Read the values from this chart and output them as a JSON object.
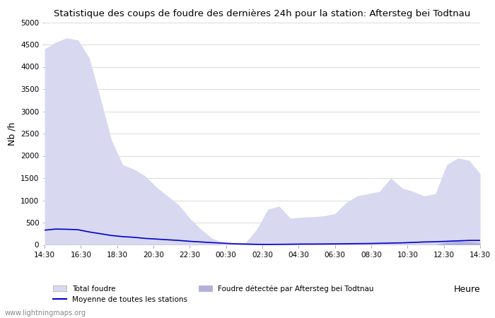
{
  "title": "Statistique des coups de foudre des dernières 24h pour la station: Aftersteg bei Todtnau",
  "xlabel": "Heure",
  "ylabel": "Nb /h",
  "ylim": [
    0,
    5000
  ],
  "yticks": [
    0,
    500,
    1000,
    1500,
    2000,
    2500,
    3000,
    3500,
    4000,
    4500,
    5000
  ],
  "xtick_labels": [
    "14:30",
    "16:30",
    "18:30",
    "20:30",
    "22:30",
    "00:30",
    "02:30",
    "04:30",
    "06:30",
    "08:30",
    "10:30",
    "12:30",
    "14:30"
  ],
  "color_total": "#d8d8f0",
  "color_station": "#b0b0e0",
  "color_mean_line": "#0000cc",
  "watermark": "www.lightningmaps.org",
  "legend_total": "Total foudre",
  "legend_station": "Foudre détectée par Aftersteg bei Todtnau",
  "legend_mean": "Moyenne de toutes les stations",
  "total_foudre": [
    4400,
    4550,
    4650,
    4600,
    4200,
    3300,
    2350,
    1800,
    1700,
    1550,
    1300,
    1100,
    900,
    600,
    350,
    150,
    50,
    20,
    50,
    350,
    800,
    870,
    600,
    620,
    630,
    650,
    700,
    950,
    1100,
    1150,
    1200,
    1500,
    1280,
    1200,
    1100,
    1150,
    1800,
    1950,
    1900,
    1600
  ],
  "station_foudre": [
    5,
    5,
    5,
    5,
    5,
    5,
    5,
    5,
    5,
    5,
    5,
    5,
    5,
    5,
    5,
    5,
    5,
    5,
    5,
    5,
    5,
    5,
    5,
    5,
    5,
    5,
    5,
    5,
    5,
    5,
    5,
    5,
    5,
    5,
    5,
    5,
    60,
    80,
    70,
    50
  ],
  "mean_line": [
    330,
    355,
    350,
    340,
    290,
    250,
    210,
    185,
    170,
    145,
    130,
    115,
    100,
    80,
    65,
    50,
    38,
    25,
    18,
    12,
    10,
    12,
    14,
    18,
    18,
    20,
    22,
    25,
    28,
    30,
    35,
    40,
    45,
    55,
    65,
    70,
    80,
    90,
    100,
    100
  ]
}
